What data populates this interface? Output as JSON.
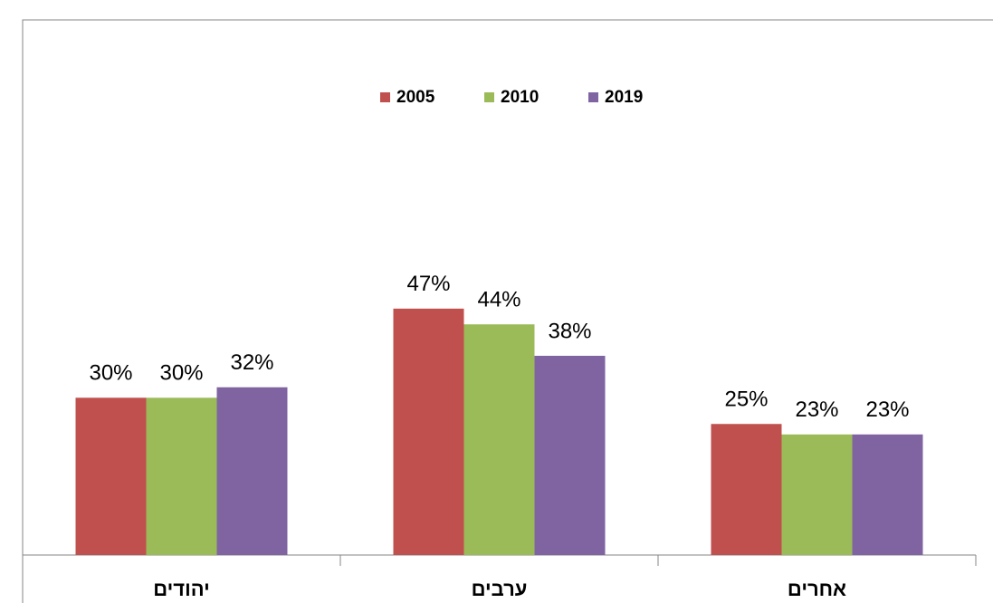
{
  "chart_data": {
    "type": "bar",
    "categories": [
      "יהודים",
      "ערבים",
      "אחרים"
    ],
    "series": [
      {
        "name": "2005",
        "color": "#c0504d",
        "values": [
          30,
          47,
          25
        ],
        "value_labels": [
          "30%",
          "47%",
          "25%"
        ]
      },
      {
        "name": "2010",
        "color": "#9bbb59",
        "values": [
          30,
          44,
          23
        ],
        "value_labels": [
          "30%",
          "44%",
          "23%"
        ]
      },
      {
        "name": "2019",
        "color": "#8064a2",
        "values": [
          32,
          38,
          23
        ],
        "value_labels": [
          "32%",
          "38%",
          "23%"
        ]
      }
    ],
    "ylim": [
      0,
      100
    ],
    "legend": "top"
  }
}
